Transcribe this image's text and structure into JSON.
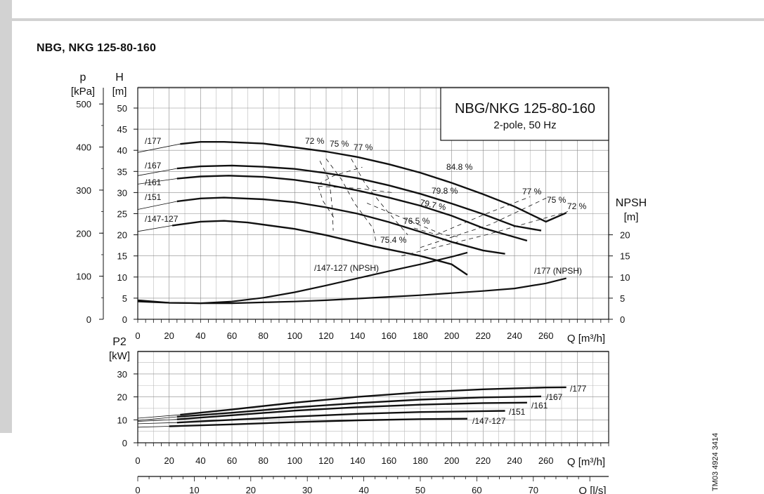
{
  "page": {
    "title": "NBG, NKG 125-80-160",
    "figure_id": "TM03 4924 3414"
  },
  "chart_data": [
    {
      "type": "line",
      "panel": "head",
      "legend_box": {
        "title": "NBG/NKG 125-80-160",
        "subtitle": "2-pole, 50 Hz"
      },
      "x_axis": {
        "ylabel": "",
        "label": "Q [m³/h]",
        "ticks": [
          0,
          20,
          40,
          60,
          80,
          100,
          120,
          140,
          160,
          180,
          200,
          220,
          240,
          260
        ],
        "range": [
          0,
          300
        ]
      },
      "y_axis_left": {
        "label_top": "H",
        "label_bottom": "[m]",
        "ticks": [
          0,
          5,
          10,
          15,
          20,
          25,
          30,
          35,
          40,
          45,
          50
        ],
        "range": [
          0,
          55
        ]
      },
      "y_axis_pressure": {
        "label_top": "p",
        "label_bottom": "[kPa]",
        "ticks": [
          0,
          100,
          200,
          300,
          400,
          500
        ]
      },
      "y_axis_right": {
        "label_top": "NPSH",
        "label_bottom": "[m]",
        "ticks": [
          0,
          5,
          10,
          15,
          20
        ]
      },
      "series": [
        {
          "name": "/177",
          "thin": [
            [
              0,
              39.5
            ],
            [
              27,
              41.5
            ]
          ],
          "thick": [
            [
              27,
              41.5
            ],
            [
              40,
              42
            ],
            [
              55,
              42
            ],
            [
              80,
              41.6
            ],
            [
              100,
              40.7
            ],
            [
              120,
              39.7
            ],
            [
              140,
              38.4
            ],
            [
              160,
              36.7
            ],
            [
              180,
              34.7
            ],
            [
              200,
              32.3
            ],
            [
              220,
              29.6
            ],
            [
              240,
              26.7
            ],
            [
              260,
              23.1
            ],
            [
              273,
              25.2
            ]
          ]
        },
        {
          "name": "/167",
          "thin": [
            [
              0,
              34
            ],
            [
              25,
              35.7
            ]
          ],
          "thick": [
            [
              25,
              35.7
            ],
            [
              40,
              36.2
            ],
            [
              60,
              36.4
            ],
            [
              80,
              36.1
            ],
            [
              100,
              35.6
            ],
            [
              120,
              34.6
            ],
            [
              140,
              33.4
            ],
            [
              160,
              31.7
            ],
            [
              180,
              29.7
            ],
            [
              200,
              27.4
            ],
            [
              220,
              24.9
            ],
            [
              240,
              22.1
            ],
            [
              257,
              21
            ]
          ]
        },
        {
          "name": "/161",
          "thin": [
            [
              0,
              32
            ],
            [
              25,
              33.3
            ]
          ],
          "thick": [
            [
              25,
              33.3
            ],
            [
              40,
              33.8
            ],
            [
              58,
              34
            ],
            [
              80,
              33.7
            ],
            [
              100,
              33
            ],
            [
              120,
              31.9
            ],
            [
              140,
              30.5
            ],
            [
              160,
              28.8
            ],
            [
              180,
              26.9
            ],
            [
              200,
              24.5
            ],
            [
              220,
              21.6
            ],
            [
              248,
              18.6
            ]
          ]
        },
        {
          "name": "/151",
          "thin": [
            [
              0,
              26
            ],
            [
              25,
              27.9
            ]
          ],
          "thick": [
            [
              25,
              27.9
            ],
            [
              40,
              28.6
            ],
            [
              55,
              28.8
            ],
            [
              80,
              28.4
            ],
            [
              100,
              27.7
            ],
            [
              120,
              26.5
            ],
            [
              140,
              25
            ],
            [
              160,
              23
            ],
            [
              180,
              20.7
            ],
            [
              200,
              18.3
            ],
            [
              220,
              16.3
            ],
            [
              234,
              15.5
            ]
          ]
        },
        {
          "name": "/147-127",
          "thin": [
            [
              0,
              20.8
            ],
            [
              22,
              22.2
            ]
          ],
          "thick": [
            [
              22,
              22.2
            ],
            [
              40,
              23.1
            ],
            [
              55,
              23.3
            ],
            [
              70,
              22.9
            ],
            [
              100,
              21.4
            ],
            [
              120,
              19.9
            ],
            [
              150,
              17.3
            ],
            [
              180,
              15
            ],
            [
              200,
              13
            ],
            [
              210,
              10.5
            ]
          ]
        }
      ],
      "npsh_series": [
        {
          "name": "/147-127 (NPSH)",
          "values": [
            [
              0,
              4.2
            ],
            [
              20,
              3.9
            ],
            [
              40,
              3.8
            ],
            [
              60,
              4.2
            ],
            [
              80,
              5.1
            ],
            [
              100,
              6.4
            ],
            [
              120,
              8
            ],
            [
              140,
              9.7
            ],
            [
              160,
              11.4
            ],
            [
              180,
              13
            ],
            [
              200,
              14.8
            ],
            [
              210,
              15.8
            ]
          ]
        },
        {
          "name": "/177 (NPSH)",
          "values": [
            [
              0,
              4.5
            ],
            [
              20,
              3.9
            ],
            [
              40,
              3.8
            ],
            [
              60,
              3.8
            ],
            [
              80,
              4
            ],
            [
              100,
              4.2
            ],
            [
              120,
              4.5
            ],
            [
              140,
              4.9
            ],
            [
              160,
              5.3
            ],
            [
              180,
              5.7
            ],
            [
              200,
              6.2
            ],
            [
              220,
              6.7
            ],
            [
              240,
              7.3
            ],
            [
              260,
              8.5
            ],
            [
              273,
              9.7
            ]
          ]
        }
      ],
      "efficiency_labels": [
        "72 %",
        "75 %",
        "77 %",
        "84.8 %",
        "79.8 %",
        "79.7 %",
        "76.5 %",
        "75.4 %",
        "77 %",
        "75 %",
        "72 %"
      ],
      "efficiency_lines": [
        [
          [
            116,
            37.5
          ],
          [
            122,
            33
          ],
          [
            124,
            26
          ],
          [
            124.5,
            21
          ]
        ],
        [
          [
            120,
            38
          ],
          [
            130,
            33
          ],
          [
            138,
            27.5
          ],
          [
            150,
            21.5
          ],
          [
            152,
            18
          ]
        ],
        [
          [
            136,
            38
          ],
          [
            145,
            32
          ],
          [
            158,
            26
          ],
          [
            172,
            20
          ]
        ],
        [
          [
            115,
            31.5
          ],
          [
            118,
            28
          ],
          [
            125,
            24
          ]
        ],
        [
          [
            190,
            20
          ],
          [
            222,
            25
          ],
          [
            250,
            29
          ]
        ],
        [
          [
            180,
            17
          ],
          [
            225,
            22.5
          ],
          [
            262,
            29
          ]
        ],
        [
          [
            168,
            15
          ],
          [
            222,
            20
          ],
          [
            274,
            25.5
          ]
        ],
        [
          [
            115,
            32
          ],
          [
            125,
            34
          ],
          [
            143,
            36
          ]
        ],
        [
          [
            115,
            31.5
          ],
          [
            140,
            31
          ],
          [
            162,
            30
          ]
        ],
        [
          [
            146,
            27.5
          ],
          [
            175,
            23
          ],
          [
            195,
            20
          ],
          [
            205,
            19.5
          ]
        ],
        [
          [
            176,
            21.6
          ],
          [
            188,
            20.3
          ]
        ]
      ]
    },
    {
      "type": "line",
      "panel": "power",
      "x_axis": {
        "label": "Q [m³/h]",
        "ticks": [
          0,
          20,
          40,
          60,
          80,
          100,
          120,
          140,
          160,
          180,
          200,
          220,
          240,
          260
        ],
        "range": [
          0,
          300
        ]
      },
      "y_axis": {
        "label_top": "P2",
        "label_bottom": "[kW]",
        "ticks": [
          0,
          10,
          20,
          30
        ],
        "range": [
          0,
          40
        ]
      },
      "series": [
        {
          "name": "/177",
          "thin": [
            [
              0,
              10.7
            ],
            [
              27,
              12.2
            ]
          ],
          "thick": [
            [
              27,
              12.2
            ],
            [
              60,
              14.5
            ],
            [
              100,
              17.5
            ],
            [
              140,
              20
            ],
            [
              180,
              22
            ],
            [
              220,
              23.3
            ],
            [
              260,
              24.1
            ],
            [
              273,
              24.2
            ]
          ]
        },
        {
          "name": "/167",
          "thin": [
            [
              0,
              9.7
            ],
            [
              25,
              11.3
            ]
          ],
          "thick": [
            [
              25,
              11.3
            ],
            [
              60,
              13.1
            ],
            [
              100,
              15.4
            ],
            [
              140,
              17.3
            ],
            [
              180,
              18.8
            ],
            [
              220,
              19.8
            ],
            [
              257,
              20.2
            ]
          ]
        },
        {
          "name": "/161",
          "thin": [
            [
              0,
              9.3
            ],
            [
              25,
              10.2
            ]
          ],
          "thick": [
            [
              25,
              10.2
            ],
            [
              60,
              12
            ],
            [
              100,
              14
            ],
            [
              140,
              15.5
            ],
            [
              180,
              16.6
            ],
            [
              220,
              17.3
            ],
            [
              248,
              17.5
            ]
          ]
        },
        {
          "name": "/151",
          "thin": [
            [
              0,
              8.3
            ],
            [
              25,
              8.8
            ]
          ],
          "thick": [
            [
              25,
              8.8
            ],
            [
              60,
              10
            ],
            [
              100,
              11.4
            ],
            [
              140,
              12.6
            ],
            [
              180,
              13.4
            ],
            [
              220,
              13.8
            ],
            [
              234,
              13.9
            ]
          ]
        },
        {
          "name": "/147-127",
          "thin": [
            [
              0,
              6.8
            ],
            [
              20,
              7.2
            ]
          ],
          "thick": [
            [
              20,
              7.2
            ],
            [
              60,
              8
            ],
            [
              100,
              9
            ],
            [
              140,
              9.8
            ],
            [
              180,
              10.3
            ],
            [
              210,
              10.5
            ]
          ]
        }
      ]
    },
    {
      "type": "line",
      "panel": "flow-ls-axis",
      "x_axis": {
        "label": "Q [l/s]",
        "ticks": [
          0,
          10,
          20,
          30,
          40,
          50,
          60,
          70
        ]
      }
    }
  ]
}
